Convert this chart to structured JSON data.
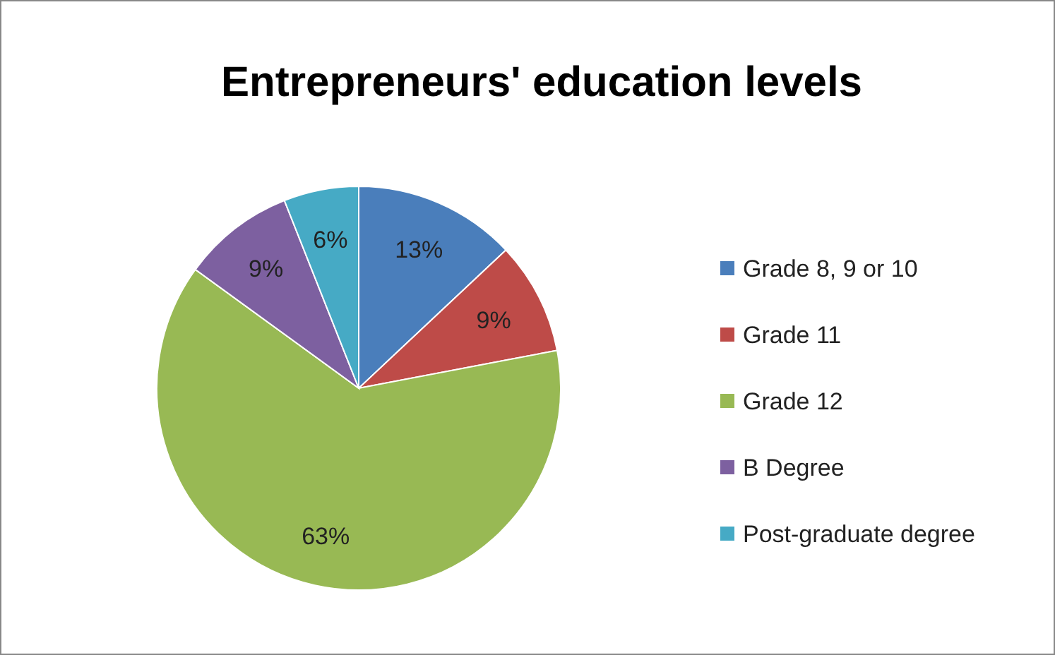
{
  "chart_data": {
    "type": "pie",
    "title": "Entrepreneurs' education levels",
    "categories": [
      "Grade 8, 9 or 10",
      "Grade 11",
      "Grade 12",
      "B Degree",
      "Post-graduate degree"
    ],
    "values": [
      13,
      9,
      63,
      9,
      6
    ],
    "colors": [
      "#4a7ebb",
      "#be4b48",
      "#98b954",
      "#7d60a0",
      "#46aac5"
    ],
    "value_labels": [
      "13%",
      "9%",
      "63%",
      "9%",
      "6%"
    ],
    "legend": "right"
  }
}
